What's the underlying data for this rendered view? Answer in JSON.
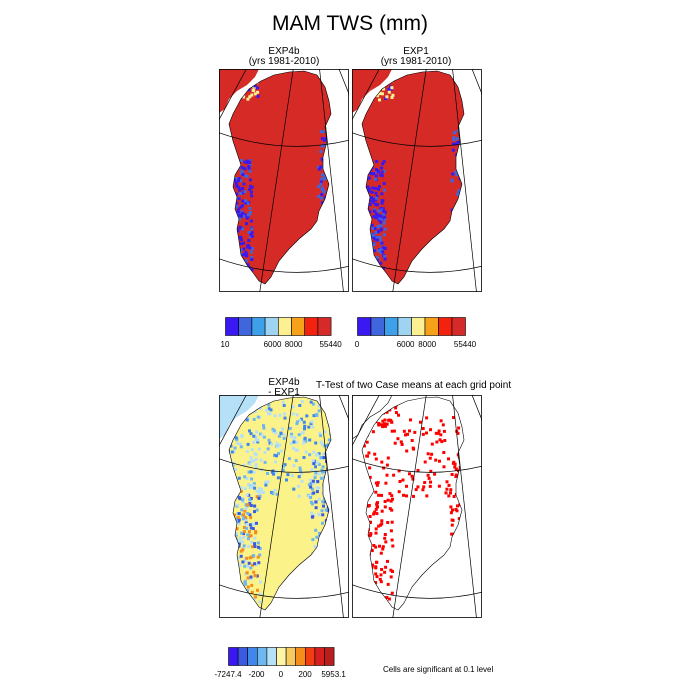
{
  "page": {
    "title": "MAM TWS (mm)",
    "ttest_title": "T-Test of two Case means at each grid point",
    "significance_note": "Cells are significant at 0.1 level"
  },
  "colors": {
    "tws_colorbar": [
      "#3a18f2",
      "#3f66dd",
      "#3fa0ea",
      "#9fd3f2",
      "#fcf093",
      "#f5a21a",
      "#f2220f",
      "#d42a2a",
      "#c92c2c"
    ],
    "diff_colorbar": [
      "#3a18f2",
      "#3a5bdf",
      "#3f87ea",
      "#6fb8ef",
      "#b6e0f7",
      "#fdf6a6",
      "#f7c95e",
      "#f48d1a",
      "#f23c12",
      "#d81f1f",
      "#b81e1e"
    ],
    "diff_fill": "#fcf28a",
    "tws_fill": "#d62a27",
    "significant": "#ff0000"
  },
  "chart_data": [
    {
      "type": "heatmap",
      "panel": "top-left",
      "title": "EXP4b",
      "subtitle": "(yrs 1981-2010)",
      "colorbar_labels": [
        "10",
        "6000",
        "8000",
        "55440"
      ]
    },
    {
      "type": "heatmap",
      "panel": "top-right",
      "title": "EXP1",
      "subtitle": "(yrs 1981-2010)",
      "colorbar_labels": [
        "0",
        "6000",
        "8000",
        "55440"
      ]
    },
    {
      "type": "heatmap",
      "panel": "bottom-left",
      "title": "EXP4b",
      "subtitle": "- EXP1",
      "colorbar_labels": [
        "-7247.4",
        "-200",
        "0",
        "200",
        "5953.1"
      ]
    },
    {
      "type": "heatmap",
      "panel": "bottom-right",
      "title": "T-Test of two Case means at each grid point",
      "note": "Cells are significant at 0.1 level"
    }
  ]
}
